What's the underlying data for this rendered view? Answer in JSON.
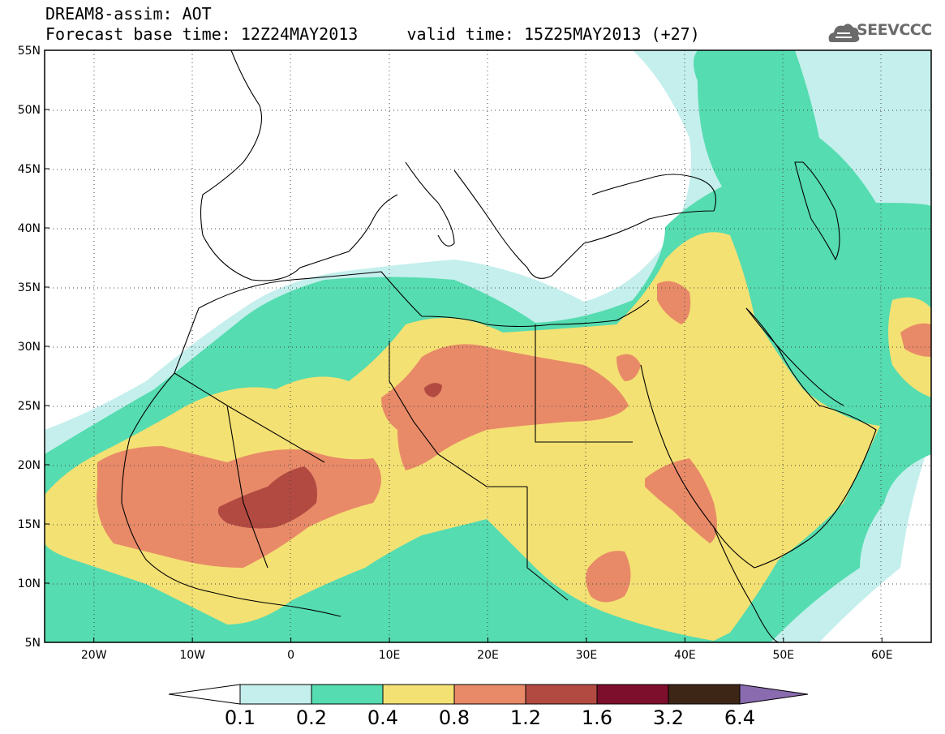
{
  "header": {
    "title_line1": "DREAM8-assim: AOT",
    "title_line2": "Forecast base time: 12Z24MAY2013     valid time: 15Z25MAY2013 (+27)",
    "logo_text": "SEEVCCC",
    "logo_icon": "cloud-icon"
  },
  "map": {
    "lat_labels": [
      "55N",
      "50N",
      "45N",
      "40N",
      "35N",
      "30N",
      "25N",
      "20N",
      "15N",
      "10N",
      "5N"
    ],
    "lon_labels": [
      "20W",
      "10W",
      "0",
      "10E",
      "20E",
      "30E",
      "40E",
      "50E",
      "60E"
    ],
    "lat_range": [
      5,
      55
    ],
    "lon_range": [
      -25,
      65
    ],
    "field": "AOT",
    "gridlines": "dotted",
    "colors": {
      "c01": "#c4efec",
      "c02": "#55dcb0",
      "c04": "#f4e173",
      "c08": "#e88a68",
      "c12": "#b24a42",
      "c16": "#7d0e2c",
      "c32": "#3e2616",
      "c64": "#8a6bb0",
      "coast": "#000000"
    }
  },
  "colorbar": {
    "labels": [
      "0.1",
      "0.2",
      "0.4",
      "0.8",
      "1.2",
      "1.6",
      "3.2",
      "6.4"
    ],
    "colors": [
      "#c4efec",
      "#55dcb0",
      "#f4e173",
      "#e88a68",
      "#b24a42",
      "#7d0e2c",
      "#3e2616"
    ],
    "under_color": "#ffffff",
    "over_color": "#8a6bb0"
  }
}
